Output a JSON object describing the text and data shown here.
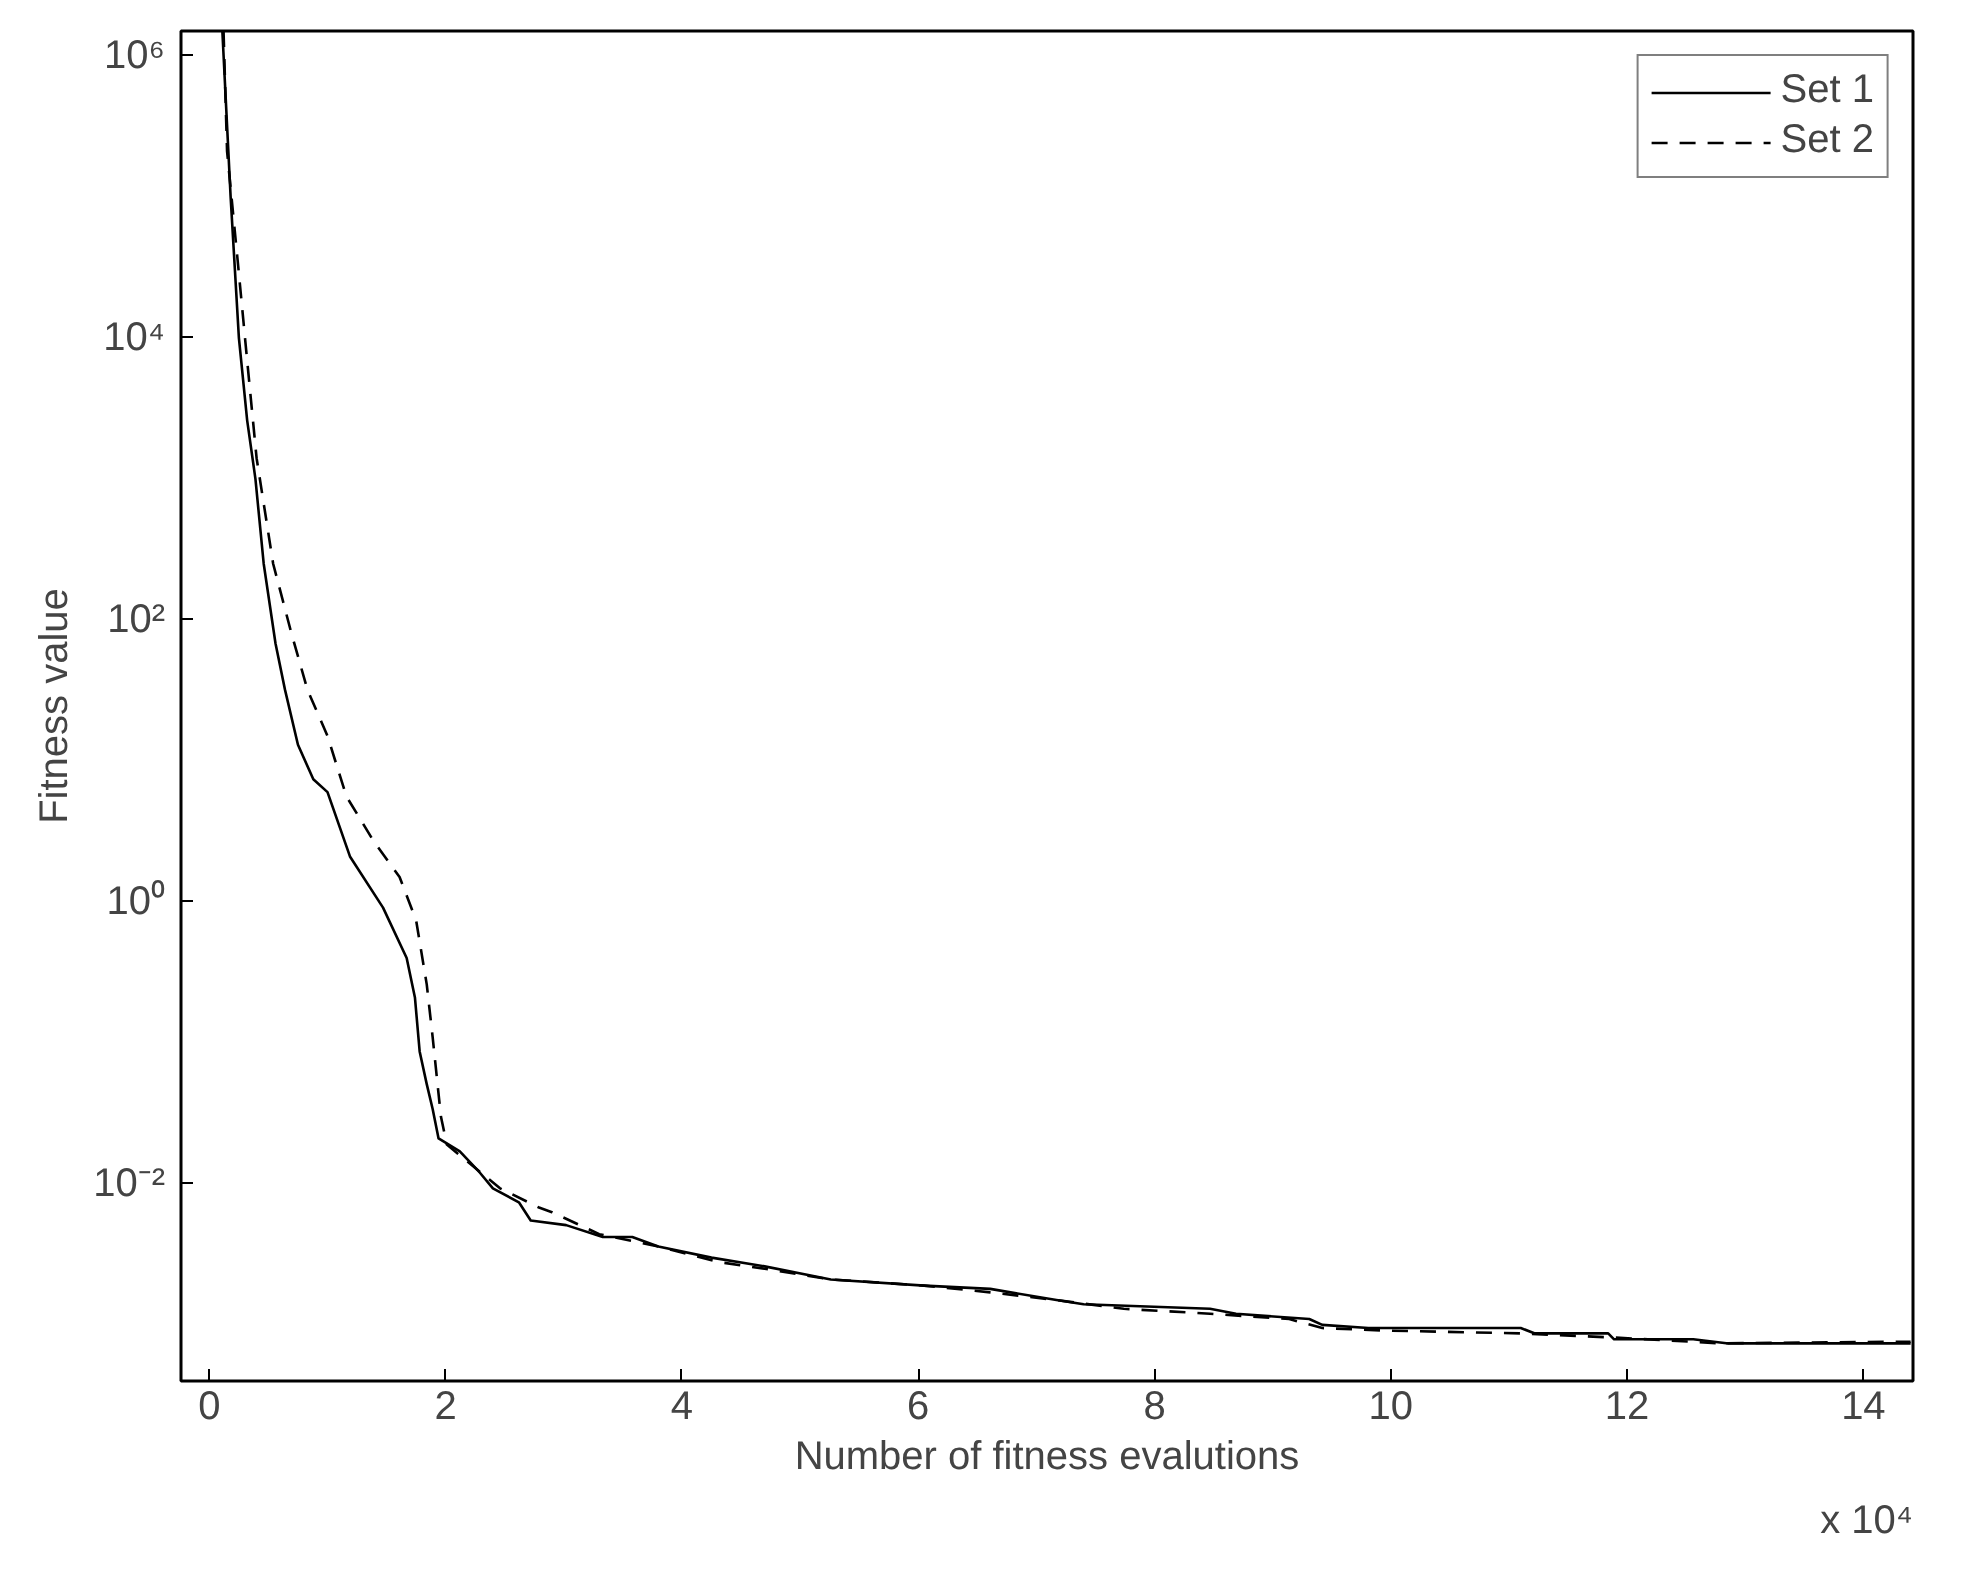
{
  "chart_data": {
    "type": "line",
    "xlabel": "Number of fitness evalutions",
    "ylabel": "Fitness value",
    "log": "y",
    "xlim": [
      -0.24,
      14.42
    ],
    "ylim": [
      0.0004,
      1500000
    ],
    "xticks": [
      0,
      2,
      4,
      6,
      8,
      10,
      12,
      14
    ],
    "yticks": [
      {
        "value": 0.01,
        "label": "10⁻²"
      },
      {
        "value": 1,
        "label": "10⁰"
      },
      {
        "value": 100,
        "label": "10²"
      },
      {
        "value": 10000,
        "label": "10⁴"
      },
      {
        "value": 1000000,
        "label": "10⁶"
      }
    ],
    "annotations": [
      "x 10⁴"
    ],
    "legend": "top right",
    "grid": false,
    "series": [
      {
        "name": "Set 1",
        "color": "#000000",
        "line_style": "solid",
        "x": [
          0.11,
          0.18,
          0.25,
          0.32,
          0.39,
          0.46,
          0.56,
          0.64,
          0.75,
          0.88,
          1.0,
          1.19,
          1.47,
          1.67,
          1.74,
          1.78,
          1.84,
          1.89,
          1.94,
          2.12,
          2.29,
          2.4,
          2.62,
          2.72,
          3.02,
          3.33,
          3.58,
          3.8,
          4.25,
          4.7,
          5.26,
          6.05,
          6.61,
          7.17,
          7.4,
          8.47,
          8.69,
          9.31,
          9.42,
          9.81,
          11.1,
          11.22,
          11.84,
          11.89,
          12.56,
          12.84,
          14.4
        ],
        "values": [
          1500000,
          100000,
          10000,
          2600,
          1000,
          250,
          68,
          32,
          13,
          7.4,
          6.0,
          2.1,
          0.91,
          0.4,
          0.21,
          0.087,
          0.051,
          0.034,
          0.021,
          0.017,
          0.012,
          0.0093,
          0.0074,
          0.0055,
          0.0051,
          0.0042,
          0.0042,
          0.0036,
          0.003,
          0.0026,
          0.0021,
          0.0019,
          0.0018,
          0.0015,
          0.0014,
          0.0013,
          0.0012,
          0.0011,
          0.001,
          0.00095,
          0.00095,
          0.00087,
          0.00087,
          0.00079,
          0.00079,
          0.00074,
          0.00074
        ]
      },
      {
        "name": "Set 2",
        "color": "#000000",
        "line_style": "dashed",
        "x": [
          0.12,
          0.15,
          0.24,
          0.32,
          0.4,
          0.54,
          0.69,
          0.83,
          1.0,
          1.16,
          1.39,
          1.61,
          1.75,
          1.84,
          1.89,
          1.92,
          1.96,
          2.01,
          2.46,
          2.79,
          2.9,
          3.3,
          3.8,
          4.3,
          4.7,
          5.26,
          6.05,
          6.61,
          7.17,
          7.74,
          8.47,
          9.14,
          9.42,
          9.98,
          11.1,
          11.94,
          12.78,
          14.4
        ],
        "values": [
          1500000,
          210000,
          35000,
          6900,
          1400,
          250,
          83,
          32,
          15,
          5.6,
          2.7,
          1.5,
          0.74,
          0.26,
          0.11,
          0.063,
          0.03,
          0.019,
          0.0093,
          0.0068,
          0.0063,
          0.0044,
          0.0036,
          0.0028,
          0.0025,
          0.0021,
          0.0019,
          0.0017,
          0.0015,
          0.0013,
          0.0012,
          0.0011,
          0.00095,
          0.00091,
          0.00087,
          0.00081,
          0.00074,
          0.00076
        ]
      }
    ]
  }
}
